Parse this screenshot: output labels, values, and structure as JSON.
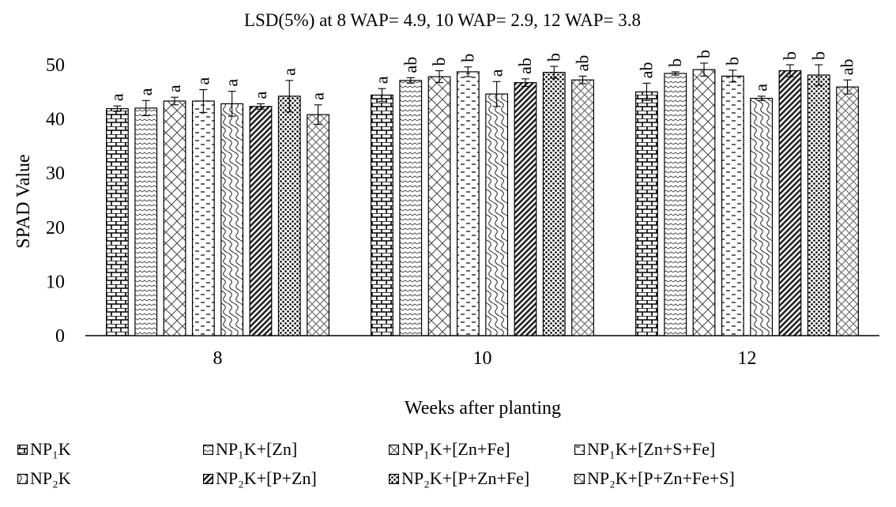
{
  "chart_data": {
    "type": "bar",
    "title": "LSD(5%) at 8 WAP= 4.9, 10 WAP= 2.9, 12 WAP= 3.8",
    "xlabel": "Weeks after planting",
    "ylabel": "SPAD Value",
    "ylim": [
      0,
      50
    ],
    "yticks": [
      "0",
      "10",
      "20",
      "30",
      "40",
      "50"
    ],
    "grid": false,
    "legend_position": "bottom",
    "categories": [
      "8",
      "10",
      "12"
    ],
    "series": [
      {
        "name": "NP₁K",
        "pattern": "brick",
        "values": [
          41.9,
          44.4,
          45.0
        ],
        "errors": [
          0.5,
          1.2,
          1.6
        ],
        "letters": [
          "a",
          "a",
          "ab"
        ]
      },
      {
        "name": "NP₁K+[Zn]",
        "pattern": "wave",
        "values": [
          42.0,
          47.1,
          48.4
        ],
        "errors": [
          1.4,
          0.5,
          0.3
        ],
        "letters": [
          "a",
          "ab",
          "b"
        ]
      },
      {
        "name": "NP₁K+[Zn+Fe]",
        "pattern": "diamond",
        "values": [
          43.3,
          47.8,
          49.1
        ],
        "errors": [
          0.7,
          1.1,
          1.2
        ],
        "letters": [
          "a",
          "b",
          "b"
        ]
      },
      {
        "name": "NP₁K+[Zn+S+Fe]",
        "pattern": "dash",
        "values": [
          43.3,
          48.7,
          47.9
        ],
        "errors": [
          2.1,
          0.9,
          1.1
        ],
        "letters": [
          "a",
          "b",
          "b"
        ]
      },
      {
        "name": "NP₂K",
        "pattern": "zigzag",
        "values": [
          42.8,
          44.6,
          43.8
        ],
        "errors": [
          2.3,
          2.3,
          0.4
        ],
        "letters": [
          "a",
          "a",
          "a"
        ]
      },
      {
        "name": "NP₂K+[P+Zn]",
        "pattern": "diagonal",
        "values": [
          42.3,
          46.7,
          48.9
        ],
        "errors": [
          0.5,
          0.7,
          1.1
        ],
        "letters": [
          "a",
          "ab",
          "b"
        ]
      },
      {
        "name": "NP₂K+[P+Zn+Fe]",
        "pattern": "dots",
        "values": [
          44.2,
          48.6,
          48.1
        ],
        "errors": [
          2.9,
          1.1,
          1.9
        ],
        "letters": [
          "a",
          "b",
          "b"
        ]
      },
      {
        "name": "NP₂K+[P+Zn+Fe+S]",
        "pattern": "crosshatch",
        "values": [
          40.8,
          47.2,
          45.9
        ],
        "errors": [
          1.8,
          0.7,
          1.3
        ],
        "letters": [
          "a",
          "ab",
          "ab"
        ]
      }
    ]
  }
}
